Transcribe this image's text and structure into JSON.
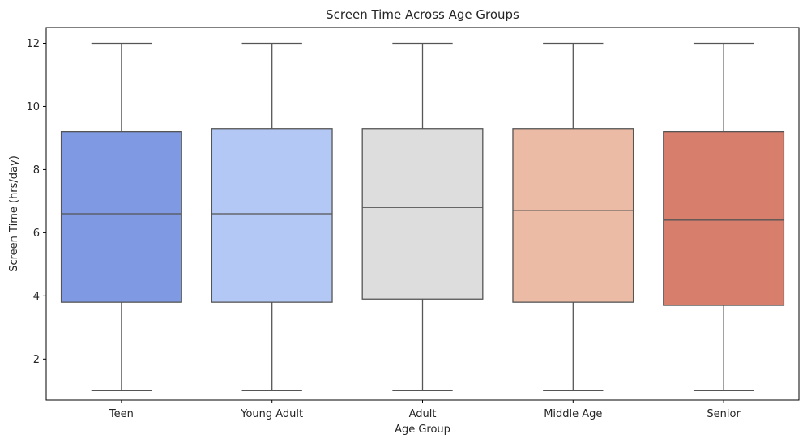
{
  "chart_data": {
    "type": "box",
    "title": "Screen Time Across Age Groups",
    "xlabel": "Age Group",
    "ylabel": "Screen Time (hrs/day)",
    "ylim": [
      0.7,
      12.5
    ],
    "yticks": [
      2,
      4,
      6,
      8,
      10,
      12
    ],
    "grid": false,
    "categories": [
      "Teen",
      "Young Adult",
      "Adult",
      "Middle Age",
      "Senior"
    ],
    "boxes": [
      {
        "category": "Teen",
        "min": 1,
        "q1": 3.8,
        "median": 6.6,
        "q3": 9.2,
        "max": 12,
        "color": "#7f99e3"
      },
      {
        "category": "Young Adult",
        "min": 1,
        "q1": 3.8,
        "median": 6.6,
        "q3": 9.3,
        "max": 12,
        "color": "#b3c8f4"
      },
      {
        "category": "Adult",
        "min": 1,
        "q1": 3.9,
        "median": 6.8,
        "q3": 9.3,
        "max": 12,
        "color": "#dddddd"
      },
      {
        "category": "Middle Age",
        "min": 1,
        "q1": 3.8,
        "median": 6.7,
        "q3": 9.3,
        "max": 12,
        "color": "#ecbba5"
      },
      {
        "category": "Senior",
        "min": 1,
        "q1": 3.7,
        "median": 6.4,
        "q3": 9.2,
        "max": 12,
        "color": "#d77f6c"
      }
    ]
  }
}
